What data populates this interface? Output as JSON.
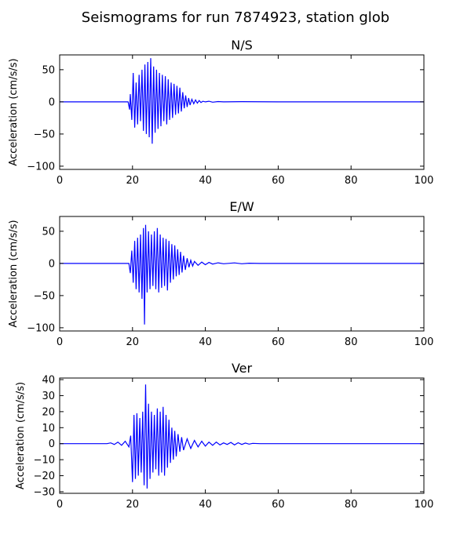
{
  "figure": {
    "title": "Seismograms for run 7874923, station glob"
  },
  "chart_data": [
    {
      "type": "line",
      "title": "N/S",
      "xlabel": "",
      "ylabel": "Acceleration (cm/s/s)",
      "xlim": [
        0,
        100
      ],
      "ylim": [
        -105,
        73
      ],
      "xticks": [
        0,
        20,
        40,
        60,
        80,
        100
      ],
      "yticks": [
        50,
        0,
        -50,
        -100
      ],
      "grid": false,
      "color": "#0000ff",
      "series": [
        {
          "x": [
            0,
            10,
            18.8,
            19.2,
            19.4,
            19.8,
            20.2,
            20.6,
            21.0,
            21.4,
            21.8,
            22.2,
            22.6,
            23.0,
            23.4,
            23.8,
            24.2,
            24.6,
            25.0,
            25.4,
            25.8,
            26.2,
            26.6,
            27.0,
            27.4,
            27.8,
            28.2,
            28.6,
            29.0,
            29.4,
            29.8,
            30.2,
            30.6,
            31.0,
            31.4,
            31.8,
            32.2,
            32.6,
            33.0,
            33.4,
            33.8,
            34.2,
            34.6,
            35.0,
            35.4,
            35.8,
            36.3,
            36.8,
            37.3,
            37.8,
            38.3,
            38.8,
            39.3,
            40.0,
            41.0,
            42.0,
            43.5,
            45.0,
            50.0,
            60.0,
            80.0,
            100.0
          ],
          "y": [
            0,
            0,
            0,
            -12,
            12,
            -28,
            45,
            -40,
            30,
            -35,
            42,
            -30,
            50,
            -45,
            58,
            -50,
            62,
            -55,
            68,
            -65,
            55,
            -48,
            50,
            -42,
            45,
            -38,
            42,
            -30,
            40,
            -35,
            35,
            -28,
            30,
            -25,
            28,
            -20,
            25,
            -18,
            22,
            -15,
            15,
            -10,
            10,
            -8,
            6,
            -5,
            4,
            -3,
            3,
            -2,
            2,
            -1,
            1,
            0,
            1,
            -0.5,
            0.5,
            0,
            0.3,
            0,
            0,
            0
          ]
        }
      ]
    },
    {
      "type": "line",
      "title": "E/W",
      "xlabel": "",
      "ylabel": "Acceleration (cm/s/s)",
      "xlim": [
        0,
        100
      ],
      "ylim": [
        -105,
        73
      ],
      "xticks": [
        0,
        20,
        40,
        60,
        80,
        100
      ],
      "yticks": [
        50,
        0,
        -50,
        -100
      ],
      "grid": false,
      "color": "#0000ff",
      "series": [
        {
          "x": [
            0,
            10,
            19.0,
            19.4,
            19.8,
            20.2,
            20.6,
            21.0,
            21.4,
            21.8,
            22.2,
            22.6,
            23.0,
            23.3,
            23.6,
            24.0,
            24.4,
            24.8,
            25.2,
            25.6,
            26.0,
            26.4,
            26.8,
            27.2,
            27.6,
            28.0,
            28.4,
            28.8,
            29.2,
            29.6,
            30.0,
            30.4,
            30.8,
            31.2,
            31.6,
            32.0,
            32.4,
            32.8,
            33.2,
            33.6,
            34.0,
            34.5,
            35.0,
            35.5,
            36.0,
            36.5,
            37.0,
            38.0,
            39.0,
            40.0,
            41.0,
            42.0,
            43.5,
            45.0,
            48.0,
            50.0,
            52.0,
            55.0,
            60.0,
            80.0,
            100.0
          ],
          "y": [
            0,
            0,
            0,
            -15,
            20,
            -30,
            35,
            -40,
            40,
            -45,
            45,
            -55,
            55,
            -95,
            60,
            -45,
            50,
            -40,
            45,
            -35,
            50,
            -40,
            55,
            -45,
            45,
            -38,
            40,
            -35,
            38,
            -42,
            35,
            -30,
            30,
            -25,
            28,
            -20,
            22,
            -18,
            18,
            -14,
            12,
            -10,
            8,
            -6,
            5,
            -4,
            3,
            -3,
            2,
            -2,
            1.5,
            -1,
            1,
            -0.5,
            0.8,
            -0.5,
            0.3,
            0,
            0,
            0,
            0
          ]
        }
      ]
    },
    {
      "type": "line",
      "title": "Ver",
      "xlabel": "",
      "ylabel": "Acceleration (cm/s/s)",
      "xlim": [
        0,
        100
      ],
      "ylim": [
        -31,
        41
      ],
      "xticks": [
        0,
        20,
        40,
        60,
        80,
        100
      ],
      "yticks": [
        40,
        30,
        20,
        10,
        0,
        -10,
        -20,
        -30
      ],
      "grid": false,
      "color": "#0000ff",
      "series": [
        {
          "x": [
            0,
            10,
            13.0,
            14.0,
            15.0,
            16.0,
            17.0,
            18.0,
            19.0,
            19.5,
            20.0,
            20.4,
            20.8,
            21.2,
            21.6,
            22.0,
            22.4,
            22.8,
            23.2,
            23.6,
            24.0,
            24.4,
            24.8,
            25.2,
            25.6,
            26.0,
            26.4,
            26.8,
            27.2,
            27.6,
            28.0,
            28.4,
            28.8,
            29.2,
            29.6,
            30.0,
            30.4,
            30.8,
            31.2,
            31.6,
            32.0,
            32.5,
            33.0,
            33.5,
            34.0,
            35.0,
            36.0,
            37.0,
            38.0,
            39.0,
            40.0,
            41.0,
            42.0,
            43.0,
            44.0,
            45.0,
            46.0,
            47.0,
            48.0,
            49.0,
            50.0,
            51.0,
            52.0,
            53.0,
            55.0,
            60.0,
            80.0,
            100.0
          ],
          "y": [
            0,
            0,
            0,
            0.5,
            -0.5,
            1,
            -1,
            1.5,
            -2,
            5,
            -24,
            18,
            -22,
            19,
            -20,
            16,
            -18,
            20,
            -26,
            37,
            -28,
            25,
            -22,
            20,
            -18,
            18,
            -16,
            22,
            -20,
            20,
            -18,
            23,
            -20,
            18,
            -15,
            15,
            -12,
            10,
            -10,
            8,
            -8,
            6,
            -5,
            4,
            -4,
            3,
            -3,
            2,
            -2,
            1.5,
            -1.5,
            1,
            -1,
            1,
            -0.8,
            0.5,
            -0.5,
            0.8,
            -0.8,
            0.6,
            -0.5,
            0.4,
            -0.3,
            0.2,
            0,
            0,
            0,
            0
          ]
        }
      ]
    }
  ]
}
